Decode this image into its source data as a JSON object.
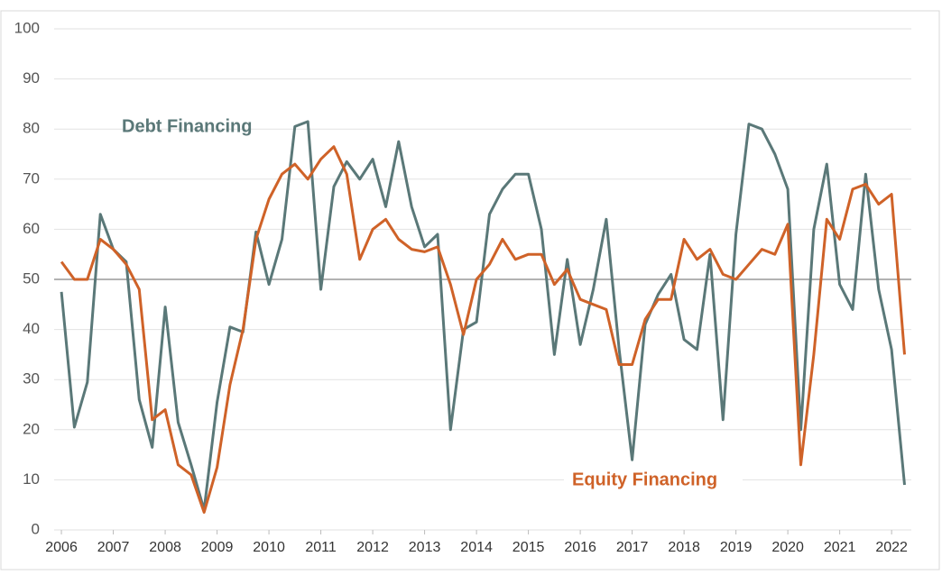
{
  "chart_data": {
    "type": "line",
    "x": [
      2006,
      2006.25,
      2006.5,
      2006.75,
      2007,
      2007.25,
      2007.5,
      2007.75,
      2008,
      2008.25,
      2008.5,
      2008.75,
      2009,
      2009.25,
      2009.5,
      2009.75,
      2010,
      2010.25,
      2010.5,
      2010.75,
      2011,
      2011.25,
      2011.5,
      2011.75,
      2012,
      2012.25,
      2012.5,
      2012.75,
      2013,
      2013.25,
      2013.5,
      2013.75,
      2014,
      2014.25,
      2014.5,
      2014.75,
      2015,
      2015.25,
      2015.5,
      2015.75,
      2016,
      2016.25,
      2016.5,
      2016.75,
      2017,
      2017.25,
      2017.5,
      2017.75,
      2018,
      2018.25,
      2018.5,
      2018.75,
      2019,
      2019.25,
      2019.5,
      2019.75,
      2020,
      2020.25,
      2020.5,
      2020.75,
      2021,
      2021.25,
      2021.5,
      2021.75,
      2022,
      2022.25
    ],
    "series": [
      {
        "name": "Debt Financing",
        "color": "#5a7878",
        "values": [
          47.5,
          20.5,
          29.5,
          63,
          56,
          53.5,
          26,
          16.5,
          44.5,
          21.5,
          13,
          4,
          25.5,
          40.5,
          39.5,
          59.5,
          49,
          58,
          80.5,
          81.5,
          48,
          68.5,
          73.5,
          70,
          74,
          64.5,
          77.5,
          64.5,
          56.5,
          59,
          20,
          40,
          41.5,
          63,
          68,
          71,
          71,
          60,
          35,
          54,
          37,
          48,
          62,
          36,
          14,
          41,
          47,
          51,
          38,
          36,
          55,
          22,
          59,
          81,
          80,
          75,
          68,
          20,
          60,
          73,
          49,
          44,
          71,
          48,
          36,
          9
        ]
      },
      {
        "name": "Equity Financing",
        "color": "#cf6228",
        "values": [
          53.5,
          50,
          50,
          58,
          56,
          53,
          48,
          22,
          24,
          13,
          11,
          3.5,
          12.5,
          29,
          40,
          58,
          66,
          71,
          73,
          70,
          74,
          76.5,
          71,
          54,
          60,
          62,
          58,
          56,
          55.5,
          56.5,
          49,
          39,
          50,
          53,
          58,
          54,
          55,
          55,
          49,
          52,
          46,
          45,
          44,
          33,
          33,
          42,
          46,
          46,
          58,
          54,
          56,
          51,
          50,
          53,
          56,
          55,
          61,
          13,
          35,
          62,
          58,
          68,
          69,
          65,
          67,
          35
        ]
      }
    ],
    "xlim": [
      2005.86,
      2022.38
    ],
    "xticks": [
      2006,
      2007,
      2008,
      2009,
      2010,
      2011,
      2012,
      2013,
      2014,
      2015,
      2016,
      2017,
      2018,
      2019,
      2020,
      2021,
      2022
    ],
    "ylim": [
      0,
      100
    ],
    "yticks": [
      0,
      10,
      20,
      30,
      40,
      50,
      60,
      70,
      80,
      90,
      100
    ],
    "grid": true,
    "reference_line": 50
  }
}
